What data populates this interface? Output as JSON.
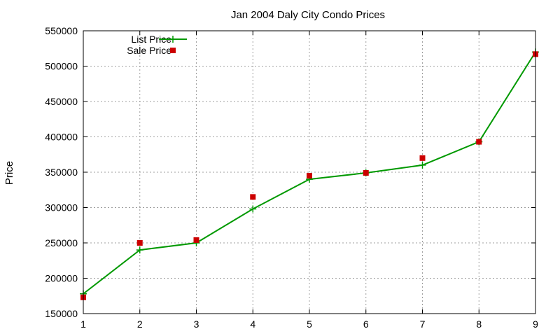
{
  "chart_data": {
    "type": "line",
    "title": "Jan 2004 Daly City Condo Prices",
    "xlabel": "",
    "ylabel": "Price",
    "xlim": [
      1,
      9
    ],
    "ylim": [
      150000,
      550000
    ],
    "xticks": [
      "1",
      "2",
      "3",
      "4",
      "5",
      "6",
      "7",
      "8",
      "9"
    ],
    "yticks": [
      "150000",
      "200000",
      "250000",
      "300000",
      "350000",
      "400000",
      "450000",
      "500000",
      "550000"
    ],
    "grid": true,
    "legend_position": "top-left",
    "series": [
      {
        "name": "List Price",
        "style": "linespoints",
        "marker": "plus",
        "color": "#009900",
        "x": [
          1,
          2,
          3,
          4,
          5,
          6,
          7,
          8,
          9
        ],
        "y": [
          178000,
          240000,
          250000,
          298000,
          340000,
          349000,
          360000,
          393000,
          520000
        ]
      },
      {
        "name": "Sale Price",
        "style": "points",
        "marker": "square",
        "color": "#cc0000",
        "x": [
          1,
          2,
          3,
          4,
          5,
          6,
          7,
          8,
          9
        ],
        "y": [
          173000,
          250000,
          254000,
          315000,
          345000,
          349000,
          370000,
          393000,
          517000
        ]
      }
    ]
  }
}
